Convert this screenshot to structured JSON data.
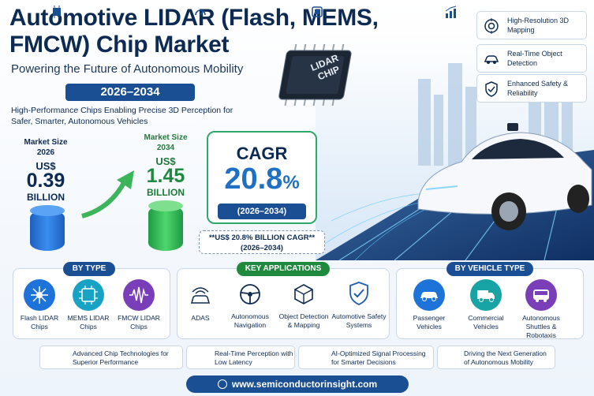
{
  "title": "Automotive LIDAR (Flash, MEMS, FMCW) Chip Market",
  "subtitle": "Powering the Future of Autonomous Mobility",
  "years": "2026–2034",
  "tagline": "High-Performance Chips Enabling Precise 3D Perception for Safer, Smarter, Autonomous Vehicles",
  "market_size": {
    "start": {
      "label": "Market Size 2026",
      "currency": "US$",
      "value": "0.39",
      "unit": "BILLION"
    },
    "end": {
      "label": "Market Size 2034",
      "currency": "US$",
      "value": "1.45",
      "unit": "BILLION"
    }
  },
  "cagr": {
    "title": "CAGR",
    "value": "20.8",
    "percent": "%",
    "years": "(2026–2034)"
  },
  "cagr_note": "**US$ 20.8% BILLION CAGR** (2026–2034)",
  "chip_label": "LIDAR CHIP",
  "features": [
    {
      "icon": "target-icon",
      "text": "High-Resolution 3D Mapping"
    },
    {
      "icon": "car-icon",
      "text": "Real-Time Object Detection"
    },
    {
      "icon": "shield-icon",
      "text": "Enhanced Safety & Reliability"
    }
  ],
  "by_type": {
    "title": "BY TYPE",
    "items": [
      {
        "icon": "flash-icon",
        "label": "Flash LIDAR Chips",
        "color": "#1e73d8"
      },
      {
        "icon": "chip-icon",
        "label": "MEMS LIDAR Chips",
        "color": "#18a3c4"
      },
      {
        "icon": "wave-icon",
        "label": "FMCW LIDAR Chips",
        "color": "#7a3fb8"
      }
    ]
  },
  "key_applications": {
    "title": "KEY APPLICATIONS",
    "items": [
      {
        "icon": "car-radar-icon",
        "label": "ADAS"
      },
      {
        "icon": "steering-wheel-icon",
        "label": "Autonomous Navigation"
      },
      {
        "icon": "cube-icon",
        "label": "Object Detection & Mapping"
      },
      {
        "icon": "shield-check-icon",
        "label": "Automotive Safety Systems"
      }
    ]
  },
  "by_vehicle_type": {
    "title": "BY VEHICLE TYPE",
    "items": [
      {
        "icon": "passenger-car-icon",
        "label": "Passenger Vehicles",
        "color": "#1e73d8"
      },
      {
        "icon": "truck-icon",
        "label": "Commercial Vehicles",
        "color": "#18a3a4"
      },
      {
        "icon": "shuttle-icon",
        "label": "Autonomous Shuttles & Robotaxis",
        "color": "#7a3fb8"
      }
    ]
  },
  "bottom_points": [
    {
      "icon": "processor-icon",
      "text": "Advanced Chip Technologies for Superior Performance"
    },
    {
      "icon": "gauge-icon",
      "text": "Real-Time Perception with Low Latency"
    },
    {
      "icon": "ai-chip-icon",
      "text": "AI-Optimized Signal Processing for Smarter Decisions"
    },
    {
      "icon": "growth-chart-icon",
      "text": "Driving the Next Generation of Autonomous Mobility"
    }
  ],
  "website": "www.semiconductorinsight.com",
  "colors": {
    "navy": "#0d2a52",
    "blue_pill": "#1b4f93",
    "green": "#2fa86a",
    "accent_blue": "#1f6fc4"
  }
}
